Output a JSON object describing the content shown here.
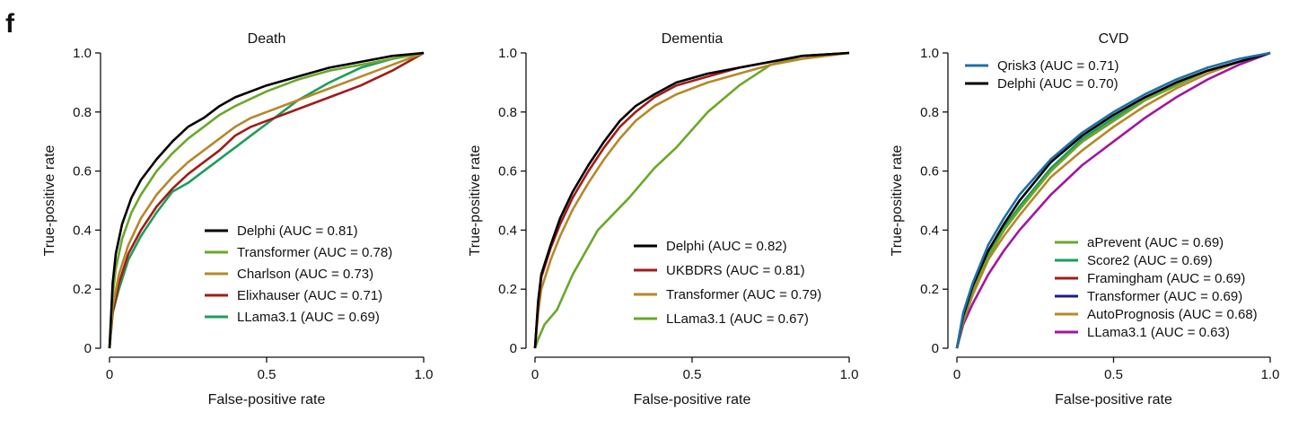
{
  "figure": {
    "panel_letter": "f"
  },
  "chart_data": [
    {
      "type": "line",
      "title": "Death",
      "xlabel": "False-positive rate",
      "ylabel": "True-positive rate",
      "xlim": [
        0,
        1
      ],
      "ylim": [
        0,
        1
      ],
      "xticks": [
        {
          "v": 0,
          "label": "0"
        },
        {
          "v": 0.5,
          "label": "0.5"
        },
        {
          "v": 1,
          "label": "1.0"
        }
      ],
      "yticks": [
        {
          "v": 0,
          "label": "0"
        },
        {
          "v": 0.2,
          "label": "0.2"
        },
        {
          "v": 0.4,
          "label": "0.4"
        },
        {
          "v": 0.6,
          "label": "0.6"
        },
        {
          "v": 0.8,
          "label": "0.8"
        },
        {
          "v": 1,
          "label": "1.0"
        }
      ],
      "legend": "lower-right",
      "series": [
        {
          "name": "LLama3.1 (AUC = 0.69)",
          "color": "#1b9e5a",
          "x": [
            0,
            0.01,
            0.03,
            0.06,
            0.1,
            0.15,
            0.2,
            0.25,
            0.3,
            0.35,
            0.4,
            0.45,
            0.5,
            0.55,
            0.6,
            0.7,
            0.8,
            0.9,
            1.0
          ],
          "y": [
            0,
            0.12,
            0.2,
            0.3,
            0.38,
            0.46,
            0.53,
            0.56,
            0.6,
            0.64,
            0.68,
            0.72,
            0.76,
            0.8,
            0.84,
            0.9,
            0.95,
            0.98,
            1.0
          ]
        },
        {
          "name": "Elixhauser (AUC = 0.71)",
          "color": "#a31a1a",
          "x": [
            0,
            0.01,
            0.03,
            0.06,
            0.1,
            0.15,
            0.2,
            0.25,
            0.3,
            0.35,
            0.4,
            0.45,
            0.5,
            0.6,
            0.7,
            0.8,
            0.9,
            1.0
          ],
          "y": [
            0,
            0.12,
            0.22,
            0.32,
            0.4,
            0.48,
            0.54,
            0.59,
            0.63,
            0.67,
            0.72,
            0.75,
            0.77,
            0.81,
            0.85,
            0.89,
            0.94,
            1.0
          ]
        },
        {
          "name": "Charlson (AUC = 0.73)",
          "color": "#b5882a",
          "x": [
            0,
            0.01,
            0.03,
            0.06,
            0.1,
            0.15,
            0.2,
            0.25,
            0.3,
            0.35,
            0.4,
            0.45,
            0.5,
            0.6,
            0.7,
            0.8,
            0.9,
            1.0
          ],
          "y": [
            0,
            0.14,
            0.25,
            0.35,
            0.44,
            0.52,
            0.58,
            0.63,
            0.67,
            0.71,
            0.75,
            0.78,
            0.8,
            0.84,
            0.88,
            0.92,
            0.96,
            1.0
          ]
        },
        {
          "name": "Transformer (AUC = 0.78)",
          "color": "#6aa82a",
          "x": [
            0,
            0.01,
            0.02,
            0.04,
            0.07,
            0.1,
            0.15,
            0.2,
            0.25,
            0.3,
            0.35,
            0.4,
            0.5,
            0.6,
            0.7,
            0.8,
            0.9,
            1.0
          ],
          "y": [
            0,
            0.18,
            0.27,
            0.37,
            0.46,
            0.52,
            0.6,
            0.66,
            0.71,
            0.75,
            0.79,
            0.82,
            0.87,
            0.91,
            0.94,
            0.96,
            0.98,
            1.0
          ]
        },
        {
          "name": "Delphi (AUC = 0.81)",
          "color": "#000000",
          "x": [
            0,
            0.01,
            0.02,
            0.04,
            0.07,
            0.1,
            0.15,
            0.2,
            0.25,
            0.3,
            0.35,
            0.4,
            0.5,
            0.6,
            0.7,
            0.8,
            0.9,
            1.0
          ],
          "y": [
            0,
            0.22,
            0.32,
            0.42,
            0.51,
            0.57,
            0.64,
            0.7,
            0.75,
            0.78,
            0.82,
            0.85,
            0.89,
            0.92,
            0.95,
            0.97,
            0.99,
            1.0
          ]
        }
      ],
      "legend_order": [
        4,
        3,
        2,
        1,
        0
      ]
    },
    {
      "type": "line",
      "title": "Dementia",
      "xlabel": "False-positive rate",
      "ylabel": "True-positive rate",
      "xlim": [
        0,
        1
      ],
      "ylim": [
        0,
        1
      ],
      "xticks": [
        {
          "v": 0,
          "label": "0"
        },
        {
          "v": 0.5,
          "label": "0.5"
        },
        {
          "v": 1,
          "label": "1.0"
        }
      ],
      "yticks": [
        {
          "v": 0,
          "label": "0"
        },
        {
          "v": 0.2,
          "label": "0.2"
        },
        {
          "v": 0.4,
          "label": "0.4"
        },
        {
          "v": 0.6,
          "label": "0.6"
        },
        {
          "v": 0.8,
          "label": "0.8"
        },
        {
          "v": 1,
          "label": "1.0"
        }
      ],
      "legend": "lower-right",
      "series": [
        {
          "name": "LLama3.1 (AUC = 0.67)",
          "color": "#6aa82a",
          "x": [
            0,
            0.01,
            0.03,
            0.07,
            0.12,
            0.2,
            0.3,
            0.38,
            0.45,
            0.55,
            0.65,
            0.75,
            0.85,
            1.0
          ],
          "y": [
            0,
            0.03,
            0.08,
            0.13,
            0.25,
            0.4,
            0.51,
            0.61,
            0.68,
            0.8,
            0.89,
            0.96,
            0.99,
            1.0
          ]
        },
        {
          "name": "Transformer (AUC = 0.79)",
          "color": "#b5882a",
          "x": [
            0,
            0.01,
            0.02,
            0.05,
            0.08,
            0.12,
            0.17,
            0.22,
            0.27,
            0.32,
            0.38,
            0.45,
            0.55,
            0.65,
            0.75,
            0.85,
            1.0
          ],
          "y": [
            0,
            0.12,
            0.2,
            0.3,
            0.38,
            0.47,
            0.56,
            0.64,
            0.71,
            0.77,
            0.82,
            0.86,
            0.9,
            0.93,
            0.96,
            0.98,
            1.0
          ]
        },
        {
          "name": "UKBDRS (AUC = 0.81)",
          "color": "#a31a1a",
          "x": [
            0,
            0.01,
            0.02,
            0.05,
            0.08,
            0.12,
            0.17,
            0.22,
            0.27,
            0.32,
            0.38,
            0.45,
            0.55,
            0.65,
            0.75,
            0.85,
            1.0
          ],
          "y": [
            0,
            0.15,
            0.24,
            0.34,
            0.42,
            0.51,
            0.6,
            0.68,
            0.75,
            0.8,
            0.85,
            0.89,
            0.92,
            0.95,
            0.97,
            0.99,
            1.0
          ]
        },
        {
          "name": "Delphi (AUC = 0.82)",
          "color": "#000000",
          "x": [
            0,
            0.01,
            0.02,
            0.05,
            0.08,
            0.12,
            0.17,
            0.22,
            0.27,
            0.32,
            0.38,
            0.45,
            0.55,
            0.65,
            0.75,
            0.85,
            1.0
          ],
          "y": [
            0,
            0.16,
            0.25,
            0.35,
            0.44,
            0.53,
            0.62,
            0.7,
            0.77,
            0.82,
            0.86,
            0.9,
            0.93,
            0.95,
            0.97,
            0.99,
            1.0
          ]
        }
      ],
      "legend_order": [
        3,
        2,
        1,
        0
      ]
    },
    {
      "type": "line",
      "title": "CVD",
      "xlabel": "False-positive rate",
      "ylabel": "True-positive rate",
      "xlim": [
        0,
        1
      ],
      "ylim": [
        0,
        1
      ],
      "xticks": [
        {
          "v": 0,
          "label": "0"
        },
        {
          "v": 0.5,
          "label": "0.5"
        },
        {
          "v": 1,
          "label": "1.0"
        }
      ],
      "yticks": [
        {
          "v": 0,
          "label": "0"
        },
        {
          "v": 0.2,
          "label": "0.2"
        },
        {
          "v": 0.4,
          "label": "0.4"
        },
        {
          "v": 0.6,
          "label": "0.6"
        },
        {
          "v": 0.8,
          "label": "0.8"
        },
        {
          "v": 1,
          "label": "1.0"
        }
      ],
      "legend": "top-left and lower-right",
      "series": [
        {
          "name": "LLama3.1 (AUC = 0.63)",
          "color": "#a3169e",
          "x": [
            0,
            0.02,
            0.05,
            0.1,
            0.15,
            0.2,
            0.3,
            0.4,
            0.5,
            0.6,
            0.7,
            0.8,
            0.9,
            1.0
          ],
          "y": [
            0,
            0.08,
            0.15,
            0.25,
            0.33,
            0.4,
            0.52,
            0.62,
            0.7,
            0.78,
            0.85,
            0.91,
            0.96,
            1.0
          ]
        },
        {
          "name": "AutoPrognosis (AUC = 0.68)",
          "color": "#b5882a",
          "x": [
            0,
            0.02,
            0.05,
            0.1,
            0.15,
            0.2,
            0.3,
            0.4,
            0.5,
            0.6,
            0.7,
            0.8,
            0.9,
            1.0
          ],
          "y": [
            0,
            0.09,
            0.18,
            0.3,
            0.38,
            0.45,
            0.58,
            0.67,
            0.75,
            0.82,
            0.88,
            0.93,
            0.97,
            1.0
          ]
        },
        {
          "name": "Transformer (AUC = 0.69)",
          "color": "#1a1a8c",
          "x": [
            0,
            0.02,
            0.05,
            0.1,
            0.15,
            0.2,
            0.3,
            0.4,
            0.5,
            0.6,
            0.7,
            0.8,
            0.9,
            1.0
          ],
          "y": [
            0,
            0.1,
            0.2,
            0.32,
            0.4,
            0.48,
            0.61,
            0.7,
            0.77,
            0.84,
            0.89,
            0.94,
            0.97,
            1.0
          ]
        },
        {
          "name": "Framingham (AUC = 0.69)",
          "color": "#a31a1a",
          "x": [
            0,
            0.02,
            0.05,
            0.1,
            0.15,
            0.2,
            0.3,
            0.4,
            0.5,
            0.6,
            0.7,
            0.8,
            0.9,
            1.0
          ],
          "y": [
            0,
            0.1,
            0.2,
            0.31,
            0.4,
            0.47,
            0.6,
            0.7,
            0.77,
            0.84,
            0.89,
            0.94,
            0.97,
            1.0
          ]
        },
        {
          "name": "Score2 (AUC = 0.69)",
          "color": "#1b9e5a",
          "x": [
            0,
            0.02,
            0.05,
            0.1,
            0.15,
            0.2,
            0.3,
            0.4,
            0.5,
            0.6,
            0.7,
            0.8,
            0.9,
            1.0
          ],
          "y": [
            0,
            0.1,
            0.2,
            0.32,
            0.41,
            0.48,
            0.61,
            0.71,
            0.78,
            0.84,
            0.9,
            0.94,
            0.97,
            1.0
          ]
        },
        {
          "name": "aPrevent (AUC = 0.69)",
          "color": "#6aa82a",
          "x": [
            0,
            0.02,
            0.05,
            0.1,
            0.15,
            0.2,
            0.3,
            0.4,
            0.5,
            0.6,
            0.7,
            0.8,
            0.9,
            1.0
          ],
          "y": [
            0,
            0.1,
            0.2,
            0.31,
            0.4,
            0.47,
            0.6,
            0.7,
            0.77,
            0.84,
            0.89,
            0.94,
            0.97,
            1.0
          ]
        },
        {
          "name": "Delphi (AUC = 0.70)",
          "color": "#000000",
          "x": [
            0,
            0.02,
            0.05,
            0.1,
            0.15,
            0.2,
            0.3,
            0.4,
            0.5,
            0.6,
            0.7,
            0.8,
            0.9,
            1.0
          ],
          "y": [
            0,
            0.11,
            0.21,
            0.33,
            0.42,
            0.5,
            0.63,
            0.72,
            0.79,
            0.85,
            0.9,
            0.94,
            0.97,
            1.0
          ]
        },
        {
          "name": "Qrisk3 (AUC = 0.71)",
          "color": "#1f6fa8",
          "x": [
            0,
            0.02,
            0.05,
            0.1,
            0.15,
            0.2,
            0.3,
            0.4,
            0.5,
            0.6,
            0.7,
            0.8,
            0.9,
            1.0
          ],
          "y": [
            0,
            0.12,
            0.22,
            0.35,
            0.44,
            0.52,
            0.64,
            0.73,
            0.8,
            0.86,
            0.91,
            0.95,
            0.98,
            1.0
          ]
        }
      ],
      "legend_order": [
        7,
        6
      ],
      "legend2_order": [
        5,
        4,
        3,
        2,
        1,
        0
      ]
    }
  ]
}
